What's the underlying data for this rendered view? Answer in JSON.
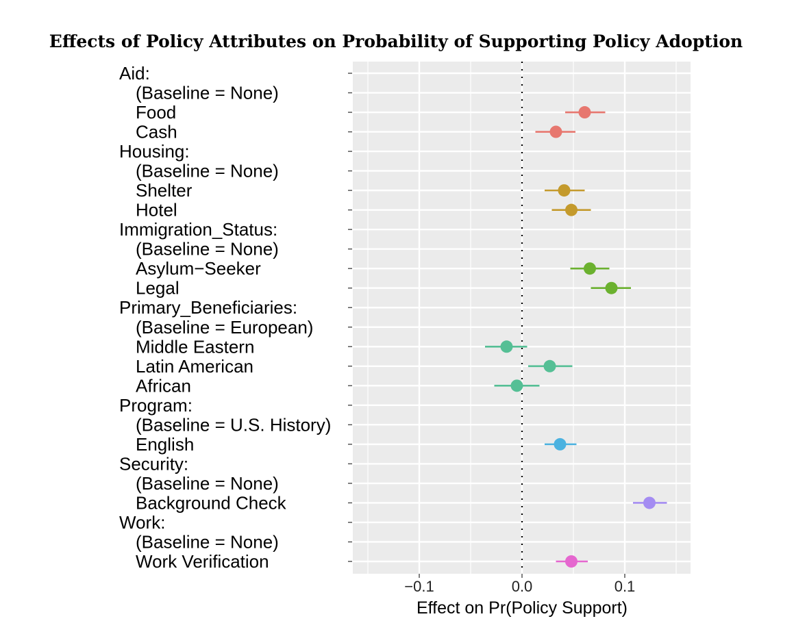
{
  "chart_data": {
    "type": "scatter",
    "subtype": "coefficient-plot",
    "title": "Effects of Policy Attributes on Probability of Supporting Policy Adoption",
    "xlabel": "Effect on Pr(Policy Support)",
    "ylabel": "",
    "xlim": [
      -0.165,
      0.165
    ],
    "x_ticks": [
      -0.1,
      0.0,
      0.1
    ],
    "x_tick_labels": [
      "−0.1",
      "0.0",
      "0.1"
    ],
    "x_minor_ticks": [
      -0.15,
      -0.05,
      0.05,
      0.15
    ],
    "grid": true,
    "reference_line": {
      "x": 0.0,
      "style": "dotted"
    },
    "legend": "none",
    "rows": [
      {
        "label": "Aid:",
        "indent": false,
        "group": "Aid"
      },
      {
        "label": "(Baseline = None)",
        "indent": true,
        "group": "Aid"
      },
      {
        "label": "Food",
        "indent": true,
        "group": "Aid",
        "estimate": 0.061,
        "lower": 0.042,
        "upper": 0.081
      },
      {
        "label": "Cash",
        "indent": true,
        "group": "Aid",
        "estimate": 0.033,
        "lower": 0.013,
        "upper": 0.052
      },
      {
        "label": "Housing:",
        "indent": false,
        "group": "Housing"
      },
      {
        "label": "(Baseline = None)",
        "indent": true,
        "group": "Housing"
      },
      {
        "label": "Shelter",
        "indent": true,
        "group": "Housing",
        "estimate": 0.041,
        "lower": 0.022,
        "upper": 0.061
      },
      {
        "label": "Hotel",
        "indent": true,
        "group": "Housing",
        "estimate": 0.048,
        "lower": 0.029,
        "upper": 0.067
      },
      {
        "label": "Immigration_Status:",
        "indent": false,
        "group": "Immigration_Status"
      },
      {
        "label": "(Baseline = None)",
        "indent": true,
        "group": "Immigration_Status"
      },
      {
        "label": "Asylum−Seeker",
        "indent": true,
        "group": "Immigration_Status",
        "estimate": 0.066,
        "lower": 0.047,
        "upper": 0.085
      },
      {
        "label": "Legal",
        "indent": true,
        "group": "Immigration_Status",
        "estimate": 0.087,
        "lower": 0.067,
        "upper": 0.106
      },
      {
        "label": "Primary_Beneficiaries:",
        "indent": false,
        "group": "Primary_Beneficiaries"
      },
      {
        "label": "(Baseline = European)",
        "indent": true,
        "group": "Primary_Beneficiaries"
      },
      {
        "label": "Middle Eastern",
        "indent": true,
        "group": "Primary_Beneficiaries",
        "estimate": -0.015,
        "lower": -0.036,
        "upper": 0.005
      },
      {
        "label": "Latin American",
        "indent": true,
        "group": "Primary_Beneficiaries",
        "estimate": 0.027,
        "lower": 0.006,
        "upper": 0.049
      },
      {
        "label": "African",
        "indent": true,
        "group": "Primary_Beneficiaries",
        "estimate": -0.005,
        "lower": -0.027,
        "upper": 0.017
      },
      {
        "label": "Program:",
        "indent": false,
        "group": "Program"
      },
      {
        "label": "(Baseline = U.S. History)",
        "indent": true,
        "group": "Program"
      },
      {
        "label": "English",
        "indent": true,
        "group": "Program",
        "estimate": 0.037,
        "lower": 0.022,
        "upper": 0.053
      },
      {
        "label": "Security:",
        "indent": false,
        "group": "Security"
      },
      {
        "label": "(Baseline = None)",
        "indent": true,
        "group": "Security"
      },
      {
        "label": "Background Check",
        "indent": true,
        "group": "Security",
        "estimate": 0.124,
        "lower": 0.108,
        "upper": 0.141
      },
      {
        "label": "Work:",
        "indent": false,
        "group": "Work"
      },
      {
        "label": "(Baseline = None)",
        "indent": true,
        "group": "Work"
      },
      {
        "label": "Work Verification",
        "indent": true,
        "group": "Work",
        "estimate": 0.048,
        "lower": 0.033,
        "upper": 0.064
      }
    ],
    "group_colors": {
      "Aid": "#E7776F",
      "Housing": "#C49A2C",
      "Immigration_Status": "#6BB12F",
      "Primary_Beneficiaries": "#55BF95",
      "Program": "#4BB2E0",
      "Security": "#A48CF2",
      "Work": "#E567CF"
    }
  },
  "style": {
    "panel_background": "#EBEBEB",
    "grid_color": "#FFFFFF"
  }
}
